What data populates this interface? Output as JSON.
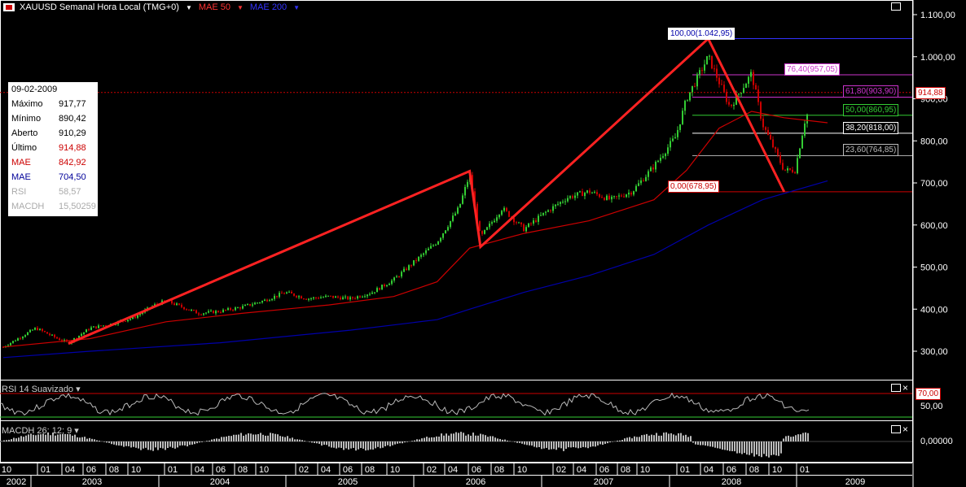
{
  "header": {
    "symbol": "XAUUSD Semanal Hora Local (TMG+0)",
    "mae50": "MAE 50",
    "mae200": "MAE 200"
  },
  "info": {
    "date": "09-02-2009",
    "rows": [
      {
        "k": "Máximo",
        "v": "917,77",
        "color": "#000000"
      },
      {
        "k": "Mínimo",
        "v": "890,42",
        "color": "#000000"
      },
      {
        "k": "Aberto",
        "v": "910,29",
        "color": "#000000"
      },
      {
        "k": "Último",
        "v": "914,88",
        "color": "#000000",
        "vcolor": "#cc0000"
      },
      {
        "k": "MAE",
        "v": "842,92",
        "color": "#cc0000"
      },
      {
        "k": "MAE",
        "v": "704,50",
        "color": "#000099"
      },
      {
        "k": "RSI",
        "v": "58,57",
        "color": "#aaaaaa"
      },
      {
        "k": "MACDH",
        "v": "15,50259",
        "color": "#aaaaaa"
      }
    ]
  },
  "price_axis": [
    "1.100,00",
    "1.000,00",
    "900,00",
    "800,00",
    "700,00",
    "600,00",
    "500,00",
    "400,00",
    "300,00"
  ],
  "last_price": "914,88",
  "fib": [
    {
      "label": "100,00(1.042,95)",
      "color": "#0000aa",
      "border": "#ffffff",
      "bg": "#ffffff"
    },
    {
      "label": "76,40(957,05)",
      "color": "#cc33cc",
      "border": "#cc33cc",
      "bg": "#ffffff"
    },
    {
      "label": "61,80(903,90)",
      "color": "#cc33cc",
      "border": "#cc33cc",
      "bg": "#000000"
    },
    {
      "label": "50,00(860,95)",
      "color": "#33cc33",
      "border": "#33cc33",
      "bg": "#000000"
    },
    {
      "label": "38,20(818,00)",
      "color": "#ffffff",
      "border": "#ffffff",
      "bg": "#000000"
    },
    {
      "label": "23,60(764,85)",
      "color": "#bbbbbb",
      "border": "#bbbbbb",
      "bg": "#000000"
    },
    {
      "label": "0,00(678,95)",
      "color": "#cc0000",
      "border": "#cc0000",
      "bg": "#ffffff"
    }
  ],
  "rsi": {
    "label": "RSI 14 Suavizado",
    "level": "70,00",
    "axis": "50,00"
  },
  "macd": {
    "label": "MACDH 26; 12; 9",
    "axis": "0,00000"
  },
  "time_axis": {
    "months": [
      "10",
      "01",
      "04",
      "06",
      "08",
      "10",
      "01",
      "04",
      "06",
      "08",
      "10",
      "02",
      "04",
      "06",
      "08",
      "10",
      "02",
      "04",
      "06",
      "08",
      "10",
      "02",
      "04",
      "06",
      "08",
      "10",
      "01",
      "04",
      "06",
      "08",
      "10",
      "01"
    ],
    "years": [
      "2002",
      "2003",
      "2004",
      "2005",
      "2006",
      "2007",
      "2008",
      "2009"
    ]
  },
  "chart_data": {
    "type": "line",
    "title": "XAUUSD Semanal",
    "ylim": [
      270,
      1110
    ],
    "series": [
      {
        "name": "XAUUSD",
        "color": "#33cc33",
        "points": [
          [
            "2002-10",
            310
          ],
          [
            "2003-01",
            355
          ],
          [
            "2003-03",
            330
          ],
          [
            "2003-04",
            320
          ],
          [
            "2003-06",
            355
          ],
          [
            "2003-08",
            365
          ],
          [
            "2003-10",
            380
          ],
          [
            "2003-12",
            410
          ],
          [
            "2004-01",
            420
          ],
          [
            "2004-04",
            390
          ],
          [
            "2004-06",
            395
          ],
          [
            "2004-08",
            405
          ],
          [
            "2004-10",
            420
          ],
          [
            "2004-12",
            440
          ],
          [
            "2005-02",
            425
          ],
          [
            "2005-04",
            430
          ],
          [
            "2005-06",
            425
          ],
          [
            "2005-08",
            440
          ],
          [
            "2005-10",
            470
          ],
          [
            "2005-12",
            515
          ],
          [
            "2006-02",
            560
          ],
          [
            "2006-04",
            640
          ],
          [
            "2006-05",
            720
          ],
          [
            "2006-06",
            570
          ],
          [
            "2006-08",
            640
          ],
          [
            "2006-10",
            590
          ],
          [
            "2006-12",
            630
          ],
          [
            "2007-02",
            665
          ],
          [
            "2007-04",
            680
          ],
          [
            "2007-06",
            660
          ],
          [
            "2007-08",
            680
          ],
          [
            "2007-10",
            740
          ],
          [
            "2007-12",
            810
          ],
          [
            "2008-01",
            900
          ],
          [
            "2008-03",
            1000
          ],
          [
            "2008-05",
            880
          ],
          [
            "2008-07",
            960
          ],
          [
            "2008-08",
            840
          ],
          [
            "2008-10",
            730
          ],
          [
            "2008-11",
            730
          ],
          [
            "2008-12",
            860
          ],
          [
            "2009-01",
            880
          ],
          [
            "2009-02",
            915
          ]
        ]
      },
      {
        "name": "MAE 50",
        "color": "#cc0000",
        "points": [
          [
            "2002-10",
            310
          ],
          [
            "2003-06",
            330
          ],
          [
            "2004-01",
            370
          ],
          [
            "2004-08",
            390
          ],
          [
            "2005-04",
            410
          ],
          [
            "2005-10",
            430
          ],
          [
            "2006-02",
            465
          ],
          [
            "2006-05",
            545
          ],
          [
            "2006-10",
            580
          ],
          [
            "2007-04",
            610
          ],
          [
            "2007-10",
            660
          ],
          [
            "2008-01",
            730
          ],
          [
            "2008-04",
            830
          ],
          [
            "2008-07",
            870
          ],
          [
            "2008-10",
            855
          ],
          [
            "2009-02",
            843
          ]
        ]
      },
      {
        "name": "MAE 200",
        "color": "#0000aa",
        "points": [
          [
            "2002-10",
            285
          ],
          [
            "2003-06",
            300
          ],
          [
            "2004-06",
            320
          ],
          [
            "2005-06",
            350
          ],
          [
            "2006-02",
            375
          ],
          [
            "2006-05",
            400
          ],
          [
            "2006-10",
            440
          ],
          [
            "2007-04",
            480
          ],
          [
            "2007-10",
            530
          ],
          [
            "2008-03",
            600
          ],
          [
            "2008-08",
            660
          ],
          [
            "2009-02",
            705
          ]
        ]
      }
    ]
  }
}
